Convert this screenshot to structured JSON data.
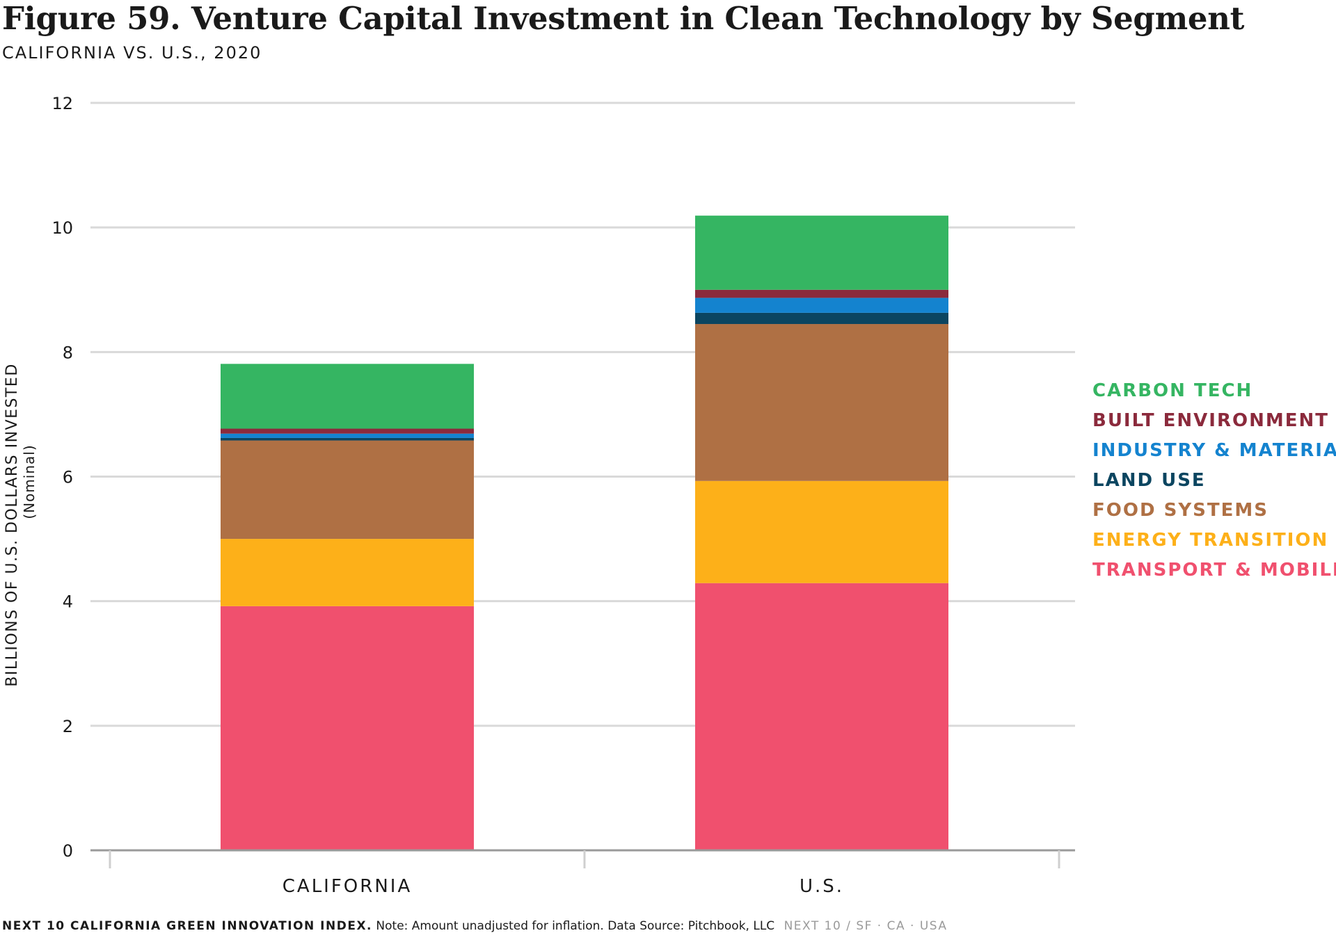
{
  "chart_data": {
    "type": "bar",
    "stacked": true,
    "title": "Figure 59. Venture Capital Investment in Clean Technology by Segment",
    "subtitle": "CALIFORNIA VS. U.S., 2020",
    "ylabel": "BILLIONS OF U.S. DOLLARS INVESTED",
    "ylabel_sub": "(Nominal)",
    "ylim": [
      0,
      12
    ],
    "yticks": [
      0,
      2,
      4,
      6,
      8,
      10,
      12
    ],
    "grid": true,
    "legend_position": "right",
    "categories": [
      "CALIFORNIA",
      "U.S."
    ],
    "series": [
      {
        "name": "TRANSPORT & MOBILITY",
        "color": "#f0506e",
        "values": [
          3.92,
          4.29
        ]
      },
      {
        "name": "ENERGY TRANSITION",
        "color": "#fdb019",
        "values": [
          1.08,
          1.64
        ]
      },
      {
        "name": "FOOD SYSTEMS",
        "color": "#af7044",
        "values": [
          1.58,
          2.52
        ]
      },
      {
        "name": "LAND USE",
        "color": "#0b4560",
        "values": [
          0.04,
          0.18
        ]
      },
      {
        "name": "INDUSTRY & MATERIALS",
        "color": "#1483cf",
        "values": [
          0.07,
          0.24
        ]
      },
      {
        "name": "BUILT ENVIRONMENT",
        "color": "#8b2a3c",
        "values": [
          0.08,
          0.13
        ]
      },
      {
        "name": "CARBON TECH",
        "color": "#35b562",
        "values": [
          1.04,
          1.19
        ]
      }
    ]
  },
  "footer": {
    "brand": "NEXT 10 CALIFORNIA GREEN INNOVATION INDEX.",
    "note": "Note: Amount unadjusted for inflation. Data Source: Pitchbook, LLC",
    "tag": "NEXT 10  /  SF · CA · USA"
  }
}
